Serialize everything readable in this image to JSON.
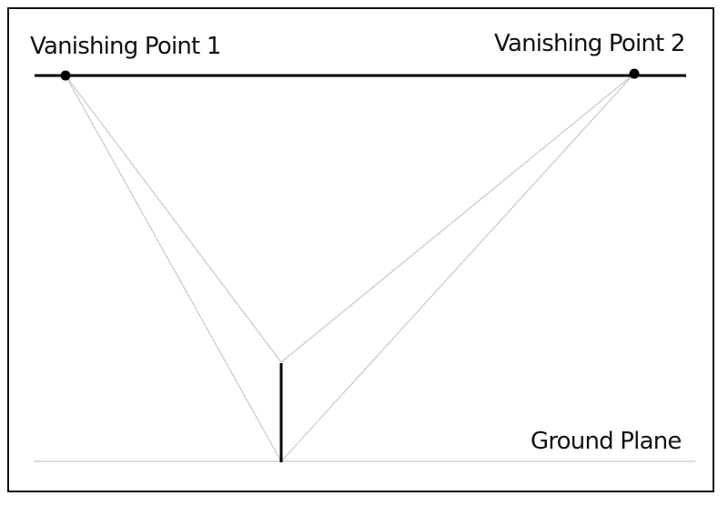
{
  "diagram": {
    "labels": {
      "vp1": "Vanishing Point 1",
      "vp2": "Vanishing Point 2",
      "ground": "Ground Plane"
    },
    "colors": {
      "frame": "#111111",
      "horizon": "#000000",
      "guides": "#c8c8c8",
      "ground": "#d0d0d0",
      "edge": "#000000",
      "text": "#111111"
    }
  }
}
